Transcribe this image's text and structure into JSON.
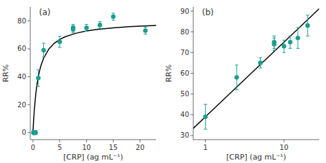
{
  "chart_data": [
    {
      "type": "scatter",
      "x_label": "[CRP] (ag mL⁻¹)",
      "y_label": "RR%",
      "annotation": "(a)",
      "xlim": [
        -0.5,
        23
      ],
      "ylim": [
        -5,
        90
      ],
      "xticks": [
        0,
        5,
        10,
        15,
        20
      ],
      "yticks": [
        0,
        20,
        40,
        60,
        80
      ],
      "grid": false,
      "series": [
        {
          "type": "scatter",
          "color": "#1a9e8f",
          "marker": "circle",
          "x": [
            0.1,
            0.5,
            1.0,
            2.0,
            5.0,
            7.5,
            7.5,
            10.0,
            12.5,
            15.0,
            21.0
          ],
          "values": [
            0.0,
            0.0,
            39.0,
            59.0,
            65.0,
            75.0,
            74.0,
            75.0,
            77.0,
            83.0,
            73.0
          ],
          "errors": [
            1.5,
            1.5,
            6.0,
            5.0,
            4.0,
            2.5,
            2.5,
            2.5,
            2.5,
            2.5,
            2.5
          ]
        },
        {
          "type": "line",
          "color": "black",
          "line_style": "solid",
          "x": [
            0,
            0.05,
            0.1,
            0.25,
            0.5,
            0.75,
            1,
            1.25,
            1.5,
            2,
            3,
            4,
            5,
            6,
            8,
            10,
            12,
            15,
            18,
            20,
            23
          ],
          "values": [
            0,
            3.81,
            7.273,
            16,
            26.667,
            34.286,
            40,
            44.444,
            48,
            53.333,
            60,
            64,
            66.667,
            68.571,
            71.111,
            72.727,
            73.846,
            75,
            75.789,
            76.19,
            76.667
          ]
        }
      ]
    },
    {
      "type": "scatter",
      "x_label": "[CRP] (ag mL⁻¹)",
      "y_label": "RR%",
      "annotation": "(b)",
      "log": "x",
      "xlim": [
        0.7,
        28
      ],
      "ylim": [
        28,
        92
      ],
      "xticks": [
        1,
        10
      ],
      "yticks": [
        30,
        40,
        50,
        60,
        70,
        80,
        90
      ],
      "grid": false,
      "series": [
        {
          "type": "scatter",
          "color": "#1a9e8f",
          "marker": "circle",
          "x": [
            1.0,
            2.5,
            5.0,
            7.5,
            7.5,
            10.0,
            12.0,
            15.0,
            20.0
          ],
          "values": [
            39.0,
            58.0,
            65.0,
            74.0,
            75.0,
            73.0,
            75.0,
            77.0,
            83.0
          ],
          "errors": [
            6.0,
            6.0,
            2.5,
            3.0,
            3.0,
            3.0,
            3.0,
            5.0,
            5.0
          ]
        },
        {
          "type": "line",
          "color": "black",
          "line_style": "solid",
          "x": [
            0.7,
            1,
            10,
            28
          ],
          "values": [
            33.424,
            39,
            75,
            91.098
          ]
        }
      ]
    }
  ]
}
